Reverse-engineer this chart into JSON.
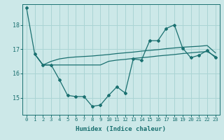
{
  "xlabel": "Humidex (Indice chaleur)",
  "bg_color": "#cce8e8",
  "line_color": "#1a7070",
  "grid_color": "#aad4d4",
  "x_ticks": [
    0,
    1,
    2,
    3,
    4,
    5,
    6,
    7,
    8,
    9,
    10,
    11,
    12,
    13,
    14,
    15,
    16,
    17,
    18,
    19,
    20,
    21,
    22,
    23
  ],
  "y_ticks": [
    15,
    16,
    17,
    18
  ],
  "ylim": [
    14.3,
    18.85
  ],
  "xlim": [
    -0.5,
    23.5
  ],
  "series1": [
    18.7,
    16.8,
    16.35,
    16.35,
    15.75,
    15.1,
    15.05,
    15.05,
    14.65,
    14.7,
    15.1,
    15.45,
    15.2,
    16.6,
    16.55,
    17.35,
    17.35,
    17.85,
    18.0,
    17.05,
    16.65,
    16.75,
    16.95,
    16.65
  ],
  "series2_x": [
    1,
    2,
    3,
    4,
    5,
    6,
    7,
    8,
    9,
    10,
    11,
    12,
    13,
    14,
    15,
    16,
    17,
    18,
    19,
    20,
    21,
    22,
    23
  ],
  "series2": [
    16.8,
    16.35,
    16.35,
    16.35,
    16.35,
    16.35,
    16.35,
    16.35,
    16.35,
    16.5,
    16.55,
    16.58,
    16.62,
    16.65,
    16.68,
    16.72,
    16.75,
    16.78,
    16.82,
    16.85,
    16.88,
    16.9,
    16.7
  ],
  "series3_x": [
    1,
    2,
    3,
    4,
    5,
    6,
    7,
    8,
    9,
    10,
    11,
    12,
    13,
    14,
    15,
    16,
    17,
    18,
    19,
    20,
    21,
    22,
    23
  ],
  "series3": [
    16.8,
    16.35,
    16.5,
    16.6,
    16.65,
    16.68,
    16.7,
    16.72,
    16.75,
    16.78,
    16.82,
    16.85,
    16.88,
    16.92,
    16.95,
    16.98,
    17.02,
    17.05,
    17.08,
    17.1,
    17.12,
    17.15,
    16.85
  ]
}
